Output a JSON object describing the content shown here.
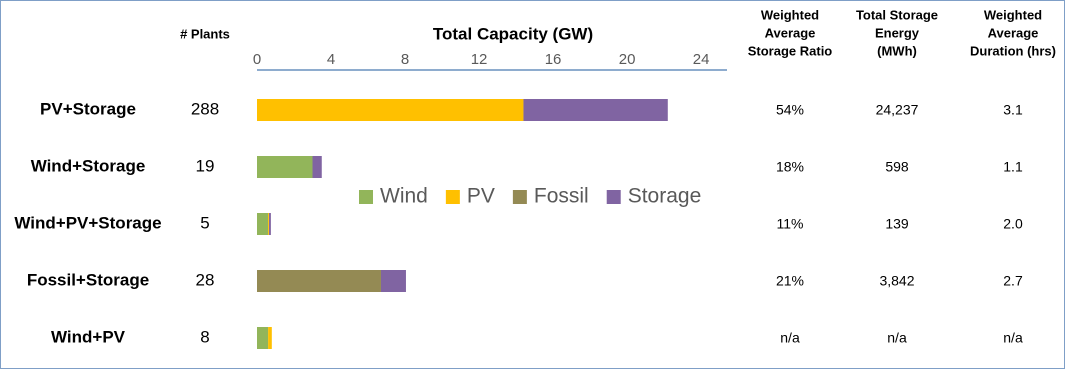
{
  "chart_data": {
    "type": "stacked-bar-horizontal",
    "title": "Total Capacity (GW)",
    "categories": [
      "PV+Storage",
      "Wind+Storage",
      "Wind+PV+Storage",
      "Fossil+Storage",
      "Wind+PV"
    ],
    "series": [
      {
        "name": "Wind",
        "color": "#92b55a",
        "values": [
          0,
          3.0,
          0.6,
          0,
          0.6
        ]
      },
      {
        "name": "PV",
        "color": "#ffc000",
        "values": [
          14.4,
          0,
          0.05,
          0,
          0.2
        ]
      },
      {
        "name": "Fossil",
        "color": "#948a54",
        "values": [
          0,
          0,
          0,
          6.7,
          0
        ]
      },
      {
        "name": "Storage",
        "color": "#8064a2",
        "values": [
          7.8,
          0.5,
          0.1,
          1.35,
          0
        ]
      }
    ],
    "xlim": [
      0,
      25.4
    ],
    "xticks": [
      0,
      4,
      8,
      12,
      16,
      20,
      24
    ],
    "grid": false,
    "legend": "center"
  },
  "table": {
    "headers": [
      [
        "# Plants"
      ],
      [
        "Weighted",
        "Average",
        "Storage Ratio"
      ],
      [
        "Total Storage",
        "Energy",
        "(MWh)"
      ],
      [
        "Weighted",
        "Average",
        "Duration (hrs)"
      ]
    ],
    "rows": [
      [
        "288",
        "54%",
        "24,237",
        "3.1"
      ],
      [
        "19",
        "18%",
        "598",
        "1.1"
      ],
      [
        "5",
        "11%",
        "139",
        "2.0"
      ],
      [
        "28",
        "21%",
        "3,842",
        "2.7"
      ],
      [
        "8",
        "n/a",
        "n/a",
        "n/a"
      ]
    ]
  }
}
